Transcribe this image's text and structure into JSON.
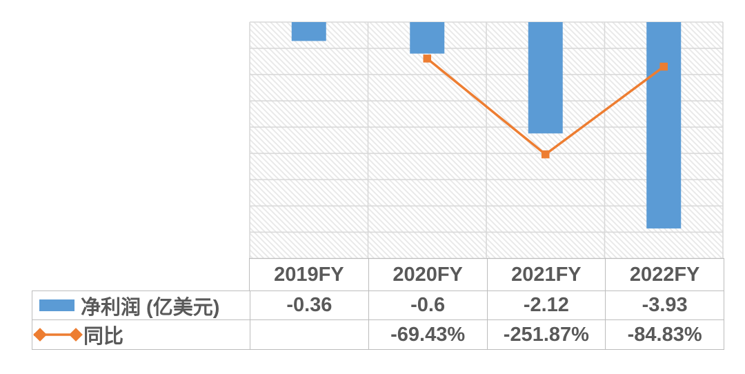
{
  "chart_data": {
    "type": "combo",
    "title": "",
    "categories": [
      "2019FY",
      "2020FY",
      "2021FY",
      "2022FY"
    ],
    "series": [
      {
        "name": "净利润 (亿美元)",
        "chart": "bar",
        "axis": "left",
        "color": "#5B9BD5",
        "values": [
          -0.36,
          -0.6,
          -2.12,
          -3.93
        ]
      },
      {
        "name": "同比",
        "chart": "line",
        "axis": "right",
        "color": "#ED7D31",
        "marker": "square",
        "values": [
          null,
          -69.43,
          -251.87,
          -84.83
        ],
        "values_display": [
          "",
          "-69.43%",
          "-251.87%",
          "-84.83%"
        ]
      }
    ],
    "left_axis": {
      "max": 0,
      "min": -4.5,
      "step": 0.5,
      "labels_shown": false
    },
    "right_axis": {
      "max": 0,
      "min": -450,
      "step": 50,
      "unit": "%",
      "labels_shown": false
    },
    "grid": true,
    "plot_background": "diagonal-hatch",
    "legend_position": "data-table-left"
  },
  "table": {
    "categories": [
      "2019FY",
      "2020FY",
      "2021FY",
      "2022FY"
    ],
    "rows": [
      {
        "label": "净利润 (亿美元)",
        "values": [
          "-0.36",
          "-0.6",
          "-2.12",
          "-3.93"
        ]
      },
      {
        "label": "同比",
        "values": [
          "",
          "-69.43%",
          "-251.87%",
          "-84.83%"
        ]
      }
    ]
  },
  "colors": {
    "bar": "#5B9BD5",
    "line": "#ED7D31",
    "text": "#595959",
    "table_border": "#bcbcbc",
    "gridline": "#d9d9d9",
    "hatch": "#e9e9e9"
  }
}
